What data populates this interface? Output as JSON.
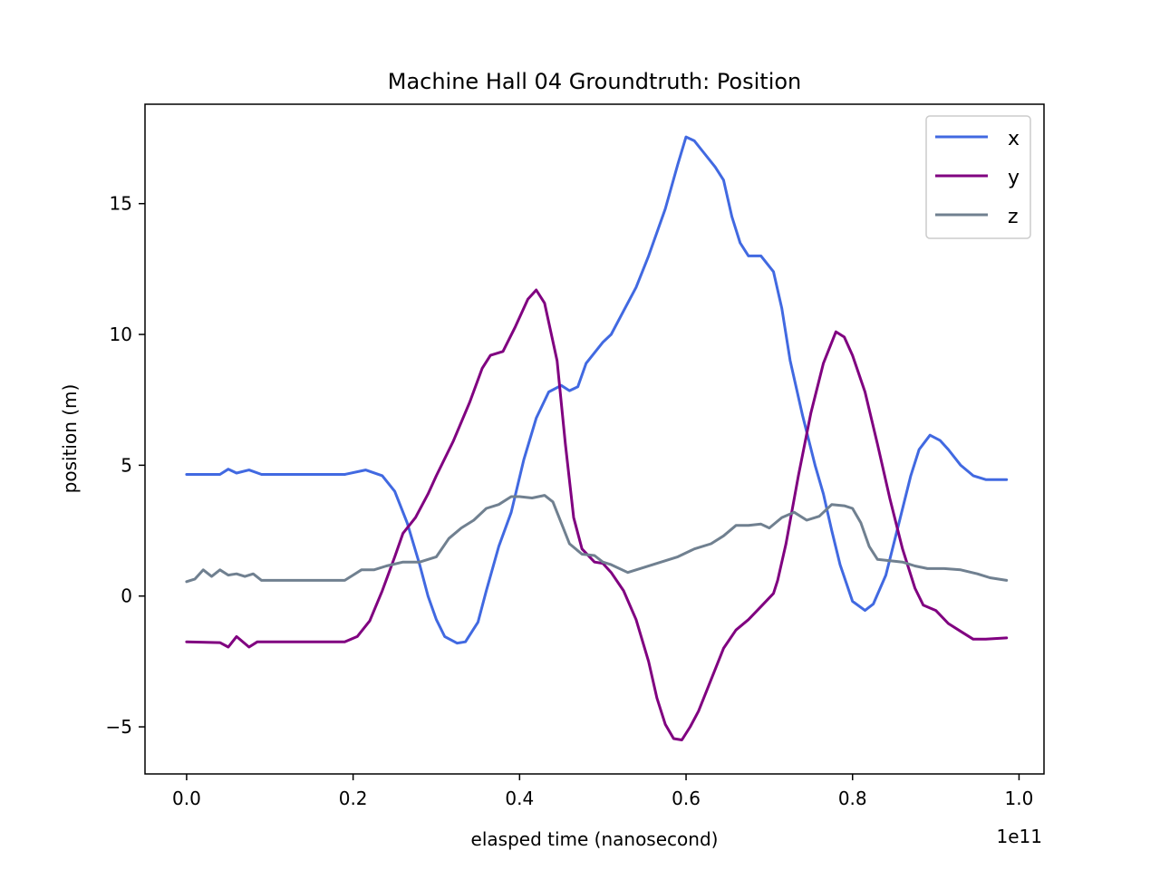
{
  "chart_data": {
    "type": "line",
    "title": "Machine Hall 04 Groundtruth: Position",
    "xlabel": "elasped time (nanosecond)",
    "ylabel": "position (m)",
    "x_offset_label": "1e11",
    "xlim": [
      -0.05,
      1.03
    ],
    "ylim": [
      -6.8,
      18.8
    ],
    "x_ticks": [
      0.0,
      0.2,
      0.4,
      0.6,
      0.8,
      1.0
    ],
    "x_tick_labels": [
      "0.0",
      "0.2",
      "0.4",
      "0.6",
      "0.8",
      "1.0"
    ],
    "y_ticks": [
      -5,
      0,
      5,
      10,
      15
    ],
    "y_tick_labels": [
      "−5",
      "0",
      "5",
      "10",
      "15"
    ],
    "grid": false,
    "legend": "top-right",
    "series": [
      {
        "name": "x",
        "color": "#4169e1",
        "points": [
          [
            0.0,
            4.65
          ],
          [
            0.04,
            4.65
          ],
          [
            0.05,
            4.85
          ],
          [
            0.06,
            4.7
          ],
          [
            0.075,
            4.82
          ],
          [
            0.09,
            4.65
          ],
          [
            0.19,
            4.65
          ],
          [
            0.215,
            4.82
          ],
          [
            0.235,
            4.6
          ],
          [
            0.25,
            4.0
          ],
          [
            0.265,
            2.8
          ],
          [
            0.28,
            1.2
          ],
          [
            0.29,
            0.0
          ],
          [
            0.3,
            -0.9
          ],
          [
            0.31,
            -1.55
          ],
          [
            0.325,
            -1.8
          ],
          [
            0.335,
            -1.75
          ],
          [
            0.35,
            -1.0
          ],
          [
            0.36,
            0.2
          ],
          [
            0.375,
            1.9
          ],
          [
            0.39,
            3.2
          ],
          [
            0.405,
            5.2
          ],
          [
            0.42,
            6.8
          ],
          [
            0.435,
            7.8
          ],
          [
            0.45,
            8.05
          ],
          [
            0.46,
            7.85
          ],
          [
            0.47,
            8.0
          ],
          [
            0.48,
            8.9
          ],
          [
            0.5,
            9.7
          ],
          [
            0.51,
            10.0
          ],
          [
            0.525,
            10.9
          ],
          [
            0.54,
            11.8
          ],
          [
            0.555,
            13.0
          ],
          [
            0.575,
            14.8
          ],
          [
            0.59,
            16.5
          ],
          [
            0.6,
            17.55
          ],
          [
            0.61,
            17.4
          ],
          [
            0.62,
            17.0
          ],
          [
            0.635,
            16.4
          ],
          [
            0.645,
            15.9
          ],
          [
            0.655,
            14.5
          ],
          [
            0.665,
            13.5
          ],
          [
            0.675,
            13.0
          ],
          [
            0.69,
            13.0
          ],
          [
            0.705,
            12.4
          ],
          [
            0.715,
            11.0
          ],
          [
            0.725,
            9.0
          ],
          [
            0.74,
            6.9
          ],
          [
            0.755,
            5.0
          ],
          [
            0.765,
            3.9
          ],
          [
            0.775,
            2.5
          ],
          [
            0.785,
            1.2
          ],
          [
            0.8,
            -0.2
          ],
          [
            0.815,
            -0.55
          ],
          [
            0.825,
            -0.3
          ],
          [
            0.84,
            0.8
          ],
          [
            0.855,
            2.7
          ],
          [
            0.87,
            4.6
          ],
          [
            0.88,
            5.6
          ],
          [
            0.893,
            6.15
          ],
          [
            0.905,
            5.95
          ],
          [
            0.915,
            5.6
          ],
          [
            0.93,
            5.0
          ],
          [
            0.945,
            4.6
          ],
          [
            0.96,
            4.45
          ],
          [
            0.985,
            4.45
          ]
        ]
      },
      {
        "name": "y",
        "color": "#800080",
        "points": [
          [
            0.0,
            -1.75
          ],
          [
            0.04,
            -1.78
          ],
          [
            0.05,
            -1.95
          ],
          [
            0.06,
            -1.55
          ],
          [
            0.075,
            -1.95
          ],
          [
            0.085,
            -1.75
          ],
          [
            0.19,
            -1.75
          ],
          [
            0.205,
            -1.55
          ],
          [
            0.22,
            -0.95
          ],
          [
            0.235,
            0.2
          ],
          [
            0.25,
            1.5
          ],
          [
            0.26,
            2.4
          ],
          [
            0.275,
            3.0
          ],
          [
            0.29,
            3.9
          ],
          [
            0.3,
            4.6
          ],
          [
            0.32,
            5.9
          ],
          [
            0.34,
            7.4
          ],
          [
            0.355,
            8.7
          ],
          [
            0.365,
            9.2
          ],
          [
            0.38,
            9.35
          ],
          [
            0.395,
            10.3
          ],
          [
            0.41,
            11.35
          ],
          [
            0.42,
            11.7
          ],
          [
            0.43,
            11.2
          ],
          [
            0.445,
            9.0
          ],
          [
            0.455,
            5.8
          ],
          [
            0.465,
            3.0
          ],
          [
            0.475,
            1.8
          ],
          [
            0.49,
            1.3
          ],
          [
            0.5,
            1.25
          ],
          [
            0.51,
            0.9
          ],
          [
            0.525,
            0.2
          ],
          [
            0.54,
            -0.9
          ],
          [
            0.555,
            -2.5
          ],
          [
            0.565,
            -3.9
          ],
          [
            0.575,
            -4.9
          ],
          [
            0.585,
            -5.45
          ],
          [
            0.595,
            -5.5
          ],
          [
            0.605,
            -5.0
          ],
          [
            0.615,
            -4.4
          ],
          [
            0.63,
            -3.2
          ],
          [
            0.645,
            -2.0
          ],
          [
            0.66,
            -1.3
          ],
          [
            0.675,
            -0.9
          ],
          [
            0.69,
            -0.4
          ],
          [
            0.705,
            0.1
          ],
          [
            0.71,
            0.6
          ],
          [
            0.72,
            2.0
          ],
          [
            0.735,
            4.6
          ],
          [
            0.75,
            7.0
          ],
          [
            0.765,
            8.9
          ],
          [
            0.78,
            10.1
          ],
          [
            0.79,
            9.9
          ],
          [
            0.8,
            9.2
          ],
          [
            0.815,
            7.8
          ],
          [
            0.83,
            5.8
          ],
          [
            0.845,
            3.7
          ],
          [
            0.86,
            1.8
          ],
          [
            0.875,
            0.3
          ],
          [
            0.885,
            -0.35
          ],
          [
            0.9,
            -0.55
          ],
          [
            0.915,
            -1.05
          ],
          [
            0.93,
            -1.35
          ],
          [
            0.945,
            -1.65
          ],
          [
            0.96,
            -1.65
          ],
          [
            0.985,
            -1.6
          ]
        ]
      },
      {
        "name": "z",
        "color": "#708090",
        "points": [
          [
            0.0,
            0.55
          ],
          [
            0.01,
            0.65
          ],
          [
            0.02,
            1.0
          ],
          [
            0.03,
            0.75
          ],
          [
            0.04,
            1.0
          ],
          [
            0.05,
            0.8
          ],
          [
            0.06,
            0.85
          ],
          [
            0.07,
            0.75
          ],
          [
            0.08,
            0.85
          ],
          [
            0.09,
            0.6
          ],
          [
            0.19,
            0.6
          ],
          [
            0.2,
            0.8
          ],
          [
            0.21,
            1.0
          ],
          [
            0.225,
            1.0
          ],
          [
            0.24,
            1.15
          ],
          [
            0.26,
            1.3
          ],
          [
            0.28,
            1.3
          ],
          [
            0.3,
            1.5
          ],
          [
            0.315,
            2.2
          ],
          [
            0.33,
            2.6
          ],
          [
            0.345,
            2.9
          ],
          [
            0.36,
            3.35
          ],
          [
            0.375,
            3.5
          ],
          [
            0.39,
            3.8
          ],
          [
            0.4,
            3.8
          ],
          [
            0.415,
            3.75
          ],
          [
            0.43,
            3.85
          ],
          [
            0.44,
            3.6
          ],
          [
            0.45,
            2.8
          ],
          [
            0.46,
            2.0
          ],
          [
            0.475,
            1.6
          ],
          [
            0.49,
            1.55
          ],
          [
            0.5,
            1.3
          ],
          [
            0.51,
            1.2
          ],
          [
            0.53,
            0.9
          ],
          [
            0.55,
            1.1
          ],
          [
            0.57,
            1.3
          ],
          [
            0.59,
            1.5
          ],
          [
            0.61,
            1.8
          ],
          [
            0.63,
            2.0
          ],
          [
            0.645,
            2.3
          ],
          [
            0.66,
            2.7
          ],
          [
            0.675,
            2.7
          ],
          [
            0.69,
            2.75
          ],
          [
            0.7,
            2.6
          ],
          [
            0.715,
            3.0
          ],
          [
            0.73,
            3.2
          ],
          [
            0.745,
            2.9
          ],
          [
            0.76,
            3.05
          ],
          [
            0.775,
            3.5
          ],
          [
            0.79,
            3.45
          ],
          [
            0.8,
            3.35
          ],
          [
            0.81,
            2.8
          ],
          [
            0.82,
            1.9
          ],
          [
            0.83,
            1.4
          ],
          [
            0.845,
            1.35
          ],
          [
            0.86,
            1.3
          ],
          [
            0.875,
            1.15
          ],
          [
            0.89,
            1.05
          ],
          [
            0.91,
            1.05
          ],
          [
            0.93,
            1.0
          ],
          [
            0.95,
            0.85
          ],
          [
            0.965,
            0.7
          ],
          [
            0.985,
            0.6
          ]
        ]
      }
    ]
  }
}
